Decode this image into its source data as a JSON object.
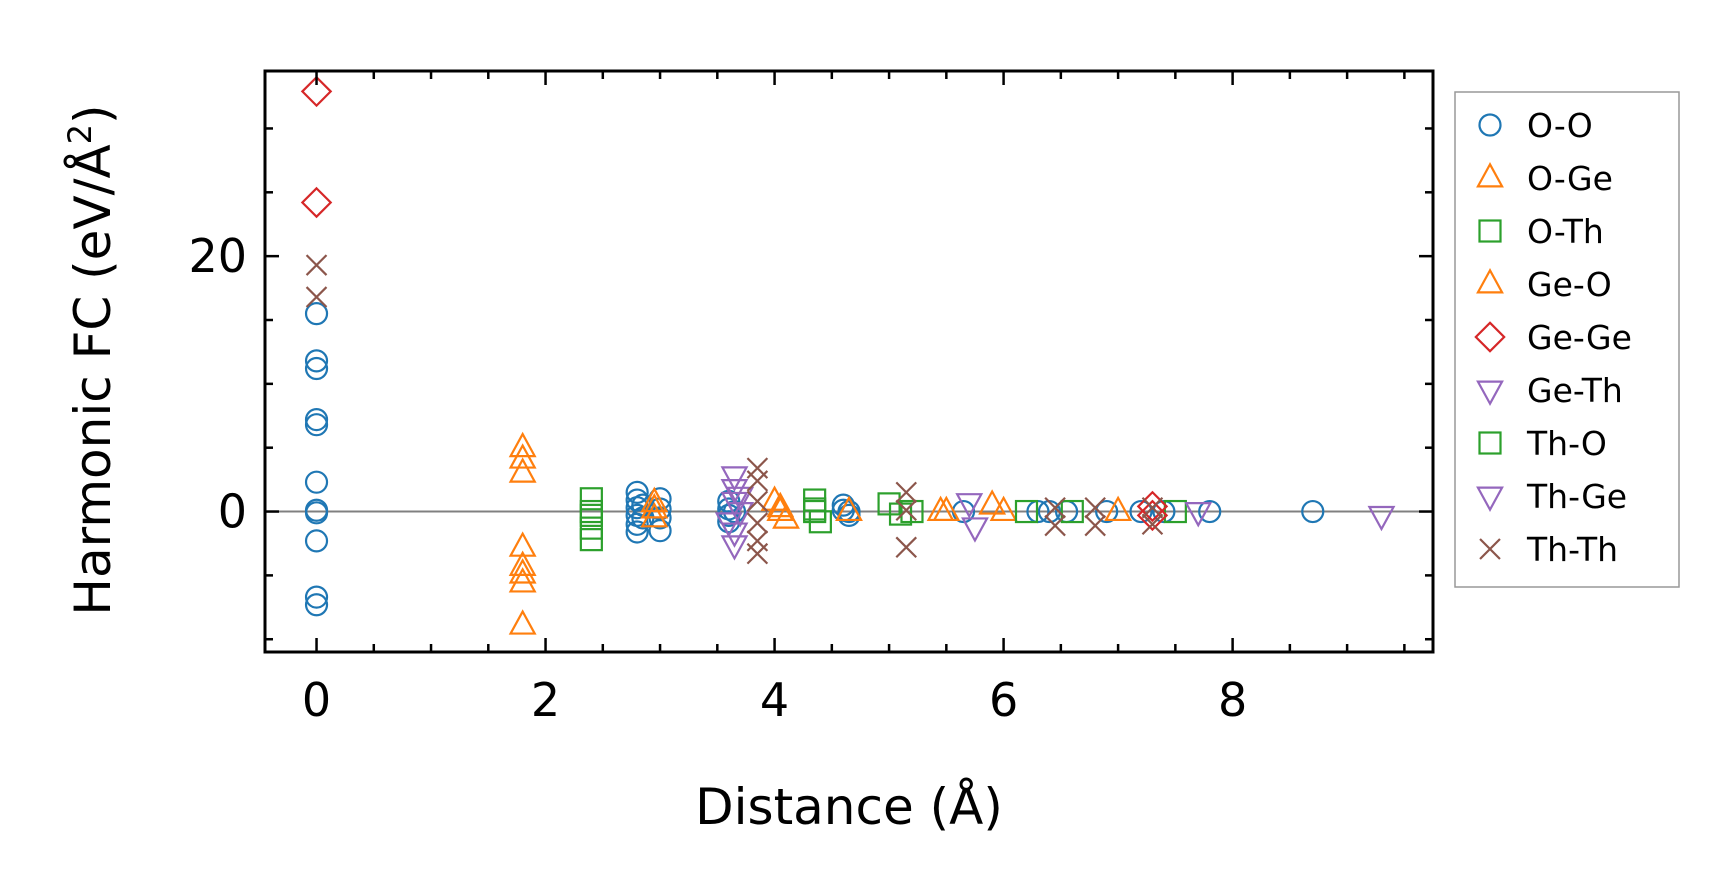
{
  "chart_data": {
    "type": "scatter",
    "title": "",
    "xlabel": "Distance (Å)",
    "ylabel_main": "Harmonic FC (eV/Å",
    "ylabel_sup": "2",
    "ylabel_close": ")",
    "xlim": [
      -0.45,
      9.75
    ],
    "ylim": [
      -11,
      34.5
    ],
    "x_ticks": [
      0,
      2,
      4,
      6,
      8
    ],
    "x_tick_labels": [
      "0",
      "2",
      "4",
      "6",
      "8"
    ],
    "x_minor_step": 0.5,
    "y_ticks": [
      0,
      20
    ],
    "y_tick_labels": [
      "0",
      "20"
    ],
    "y_minor_step": 5,
    "zero_line": true,
    "grid": false,
    "legend_position": "right",
    "series": [
      {
        "name": "O-O",
        "marker": "circle",
        "color": "#1f77b4",
        "x": [
          0,
          0,
          0,
          0,
          0,
          0,
          0,
          0,
          0,
          0,
          0,
          2.8,
          2.8,
          2.8,
          2.8,
          2.8,
          2.8,
          2.85,
          2.85,
          3.0,
          3.0,
          3.0,
          3.0,
          3.6,
          3.6,
          3.6,
          3.6,
          3.65,
          4.6,
          4.6,
          4.65,
          4.65,
          5.65,
          6.3,
          6.4,
          6.55,
          6.9,
          7.2,
          7.4,
          7.8,
          8.7
        ],
        "y": [
          15.5,
          11.8,
          11.2,
          7.2,
          6.8,
          2.3,
          -2.3,
          -6.7,
          -7.3,
          0.1,
          -0.1,
          1.5,
          0.9,
          0.3,
          -0.3,
          -1.0,
          -1.6,
          0.5,
          -0.5,
          1.0,
          0.2,
          -0.5,
          -1.5,
          0.8,
          0.2,
          -0.3,
          -0.8,
          0.0,
          0.5,
          0.1,
          -0.3,
          0.0,
          0.0,
          0.0,
          0.0,
          0.0,
          0.0,
          0.0,
          0.0,
          0.0,
          0.0
        ]
      },
      {
        "name": "O-Ge",
        "marker": "triangle-up",
        "color": "#ff7f0e",
        "x": [
          1.8,
          1.8,
          1.8,
          1.8,
          1.8,
          1.8,
          1.8,
          1.8,
          2.95,
          2.95,
          4.0,
          4.05,
          4.1,
          4.65,
          5.5,
          5.9,
          6.0,
          7.0
        ],
        "y": [
          5.0,
          4.1,
          3.0,
          -2.8,
          -4.3,
          -4.9,
          -5.6,
          -8.9,
          0.7,
          -0.5,
          0.8,
          0.0,
          -0.6,
          0.0,
          0.0,
          0.5,
          0.0,
          0.0
        ]
      },
      {
        "name": "O-Th",
        "marker": "square",
        "color": "#2ca02c",
        "x": [
          2.4,
          2.4,
          2.4,
          2.4,
          4.35,
          4.35,
          4.4,
          5.0,
          5.1,
          5.2,
          6.2,
          6.6,
          7.5
        ],
        "y": [
          1.0,
          0.0,
          -1.3,
          -2.2,
          0.9,
          0.0,
          -0.8,
          0.6,
          -0.2,
          0.0,
          0.0,
          0.0,
          0.0
        ]
      },
      {
        "name": "Ge-O",
        "marker": "triangle-up",
        "color": "#ff7f0e",
        "x": [
          2.95,
          4.05,
          5.45
        ],
        "y": [
          0.2,
          0.3,
          0.0
        ]
      },
      {
        "name": "Ge-Ge",
        "marker": "diamond",
        "color": "#d62728",
        "x": [
          0,
          0,
          7.3,
          7.3
        ],
        "y": [
          32.9,
          24.2,
          0.4,
          -0.3
        ]
      },
      {
        "name": "Ge-Th",
        "marker": "triangle-down",
        "color": "#9467bd",
        "x": [
          3.65,
          3.65,
          3.65,
          3.65,
          3.65,
          3.7,
          5.7,
          5.75,
          7.7,
          9.3
        ],
        "y": [
          2.8,
          1.8,
          0.8,
          -1.6,
          -2.6,
          0.0,
          0.7,
          -1.2,
          0.0,
          -0.3
        ]
      },
      {
        "name": "Th-O",
        "marker": "square",
        "color": "#2ca02c",
        "x": [
          2.4,
          4.35
        ],
        "y": [
          -0.3,
          0.2
        ]
      },
      {
        "name": "Th-Ge",
        "marker": "triangle-down",
        "color": "#9467bd",
        "x": [
          3.6,
          3.7
        ],
        "y": [
          -0.8,
          1.2
        ]
      },
      {
        "name": "Th-Th",
        "marker": "x",
        "color": "#8c564b",
        "x": [
          0,
          0,
          3.85,
          3.85,
          3.85,
          3.85,
          3.85,
          3.85,
          5.15,
          5.15,
          5.15,
          6.45,
          6.45,
          6.8,
          6.8,
          7.3,
          7.3
        ],
        "y": [
          19.3,
          16.8,
          3.4,
          2.4,
          0.8,
          -0.9,
          -2.3,
          -3.3,
          1.5,
          0.1,
          -2.8,
          0.3,
          -1.1,
          0.3,
          -1.1,
          0.3,
          -1.0
        ]
      }
    ]
  }
}
